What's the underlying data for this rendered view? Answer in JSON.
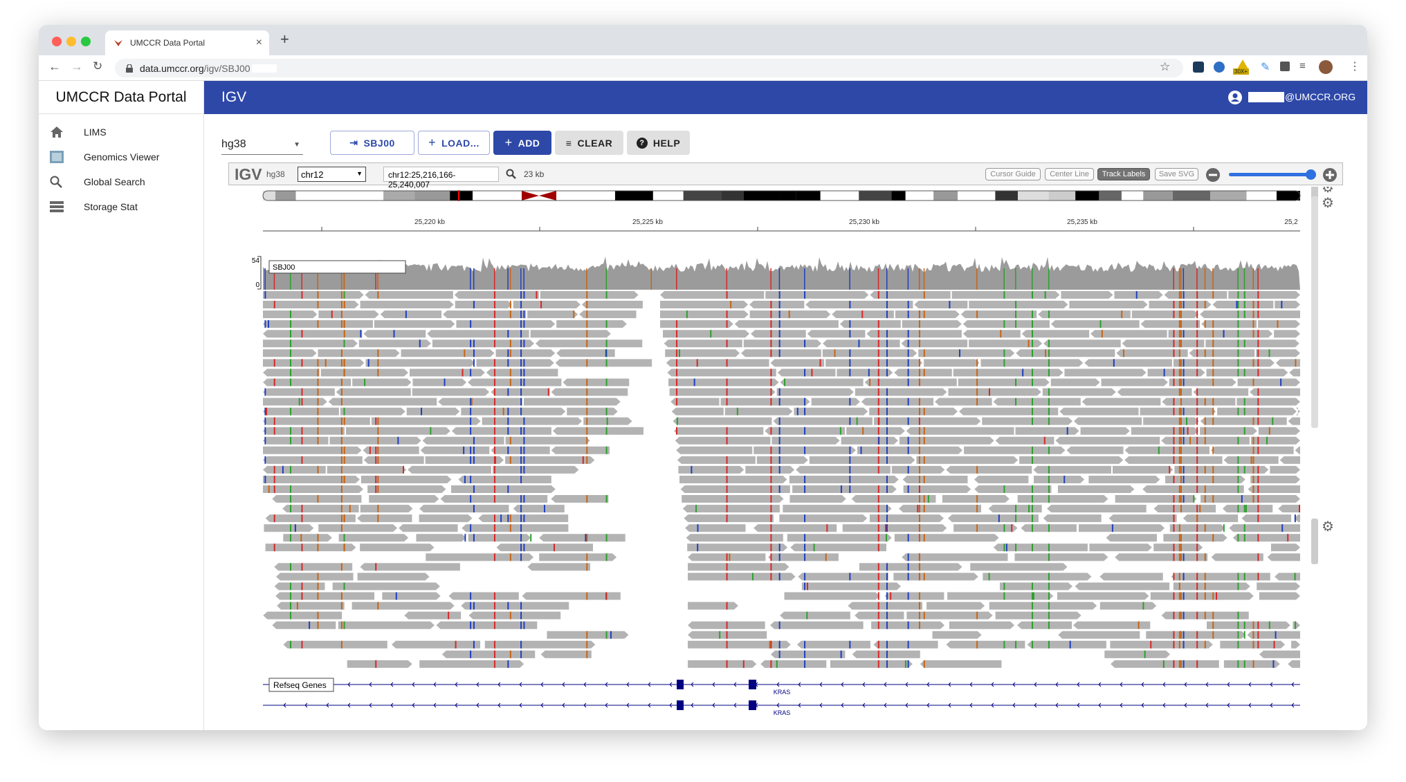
{
  "browser": {
    "tab_title": "UMCCR Data Portal",
    "url_host": "data.umccr.org",
    "url_path": "/igv/SBJ00",
    "extension_badge": "30X+"
  },
  "app": {
    "brand": "UMCCR Data Portal",
    "section": "IGV",
    "user": "@UMCCR.ORG"
  },
  "sidebar": {
    "items": [
      "LIMS",
      "Genomics Viewer",
      "Global Search",
      "Storage Stat"
    ]
  },
  "toolbar": {
    "genome": "hg38",
    "buttons": [
      "SBJ00",
      "LOAD...",
      "ADD",
      "CLEAR",
      "HELP"
    ]
  },
  "igv": {
    "logo": "IGV",
    "genome": "hg38",
    "chromosome": "chr12",
    "locus": "chr12:25,216,166-25,240,007",
    "width": "23 kb",
    "controls": [
      "Cursor Guide",
      "Center Line",
      "Track Labels",
      "Save SVG"
    ],
    "ruler": [
      "25,220 kb",
      "25,225 kb",
      "25,230 kb",
      "25,235 kb",
      "25,2"
    ],
    "coverage": {
      "label": "SBJ00",
      "max": 54,
      "min": 0
    },
    "genes": {
      "track": "Refseq Genes",
      "gene_labels": [
        "KRAS",
        "KRAS"
      ]
    }
  }
}
